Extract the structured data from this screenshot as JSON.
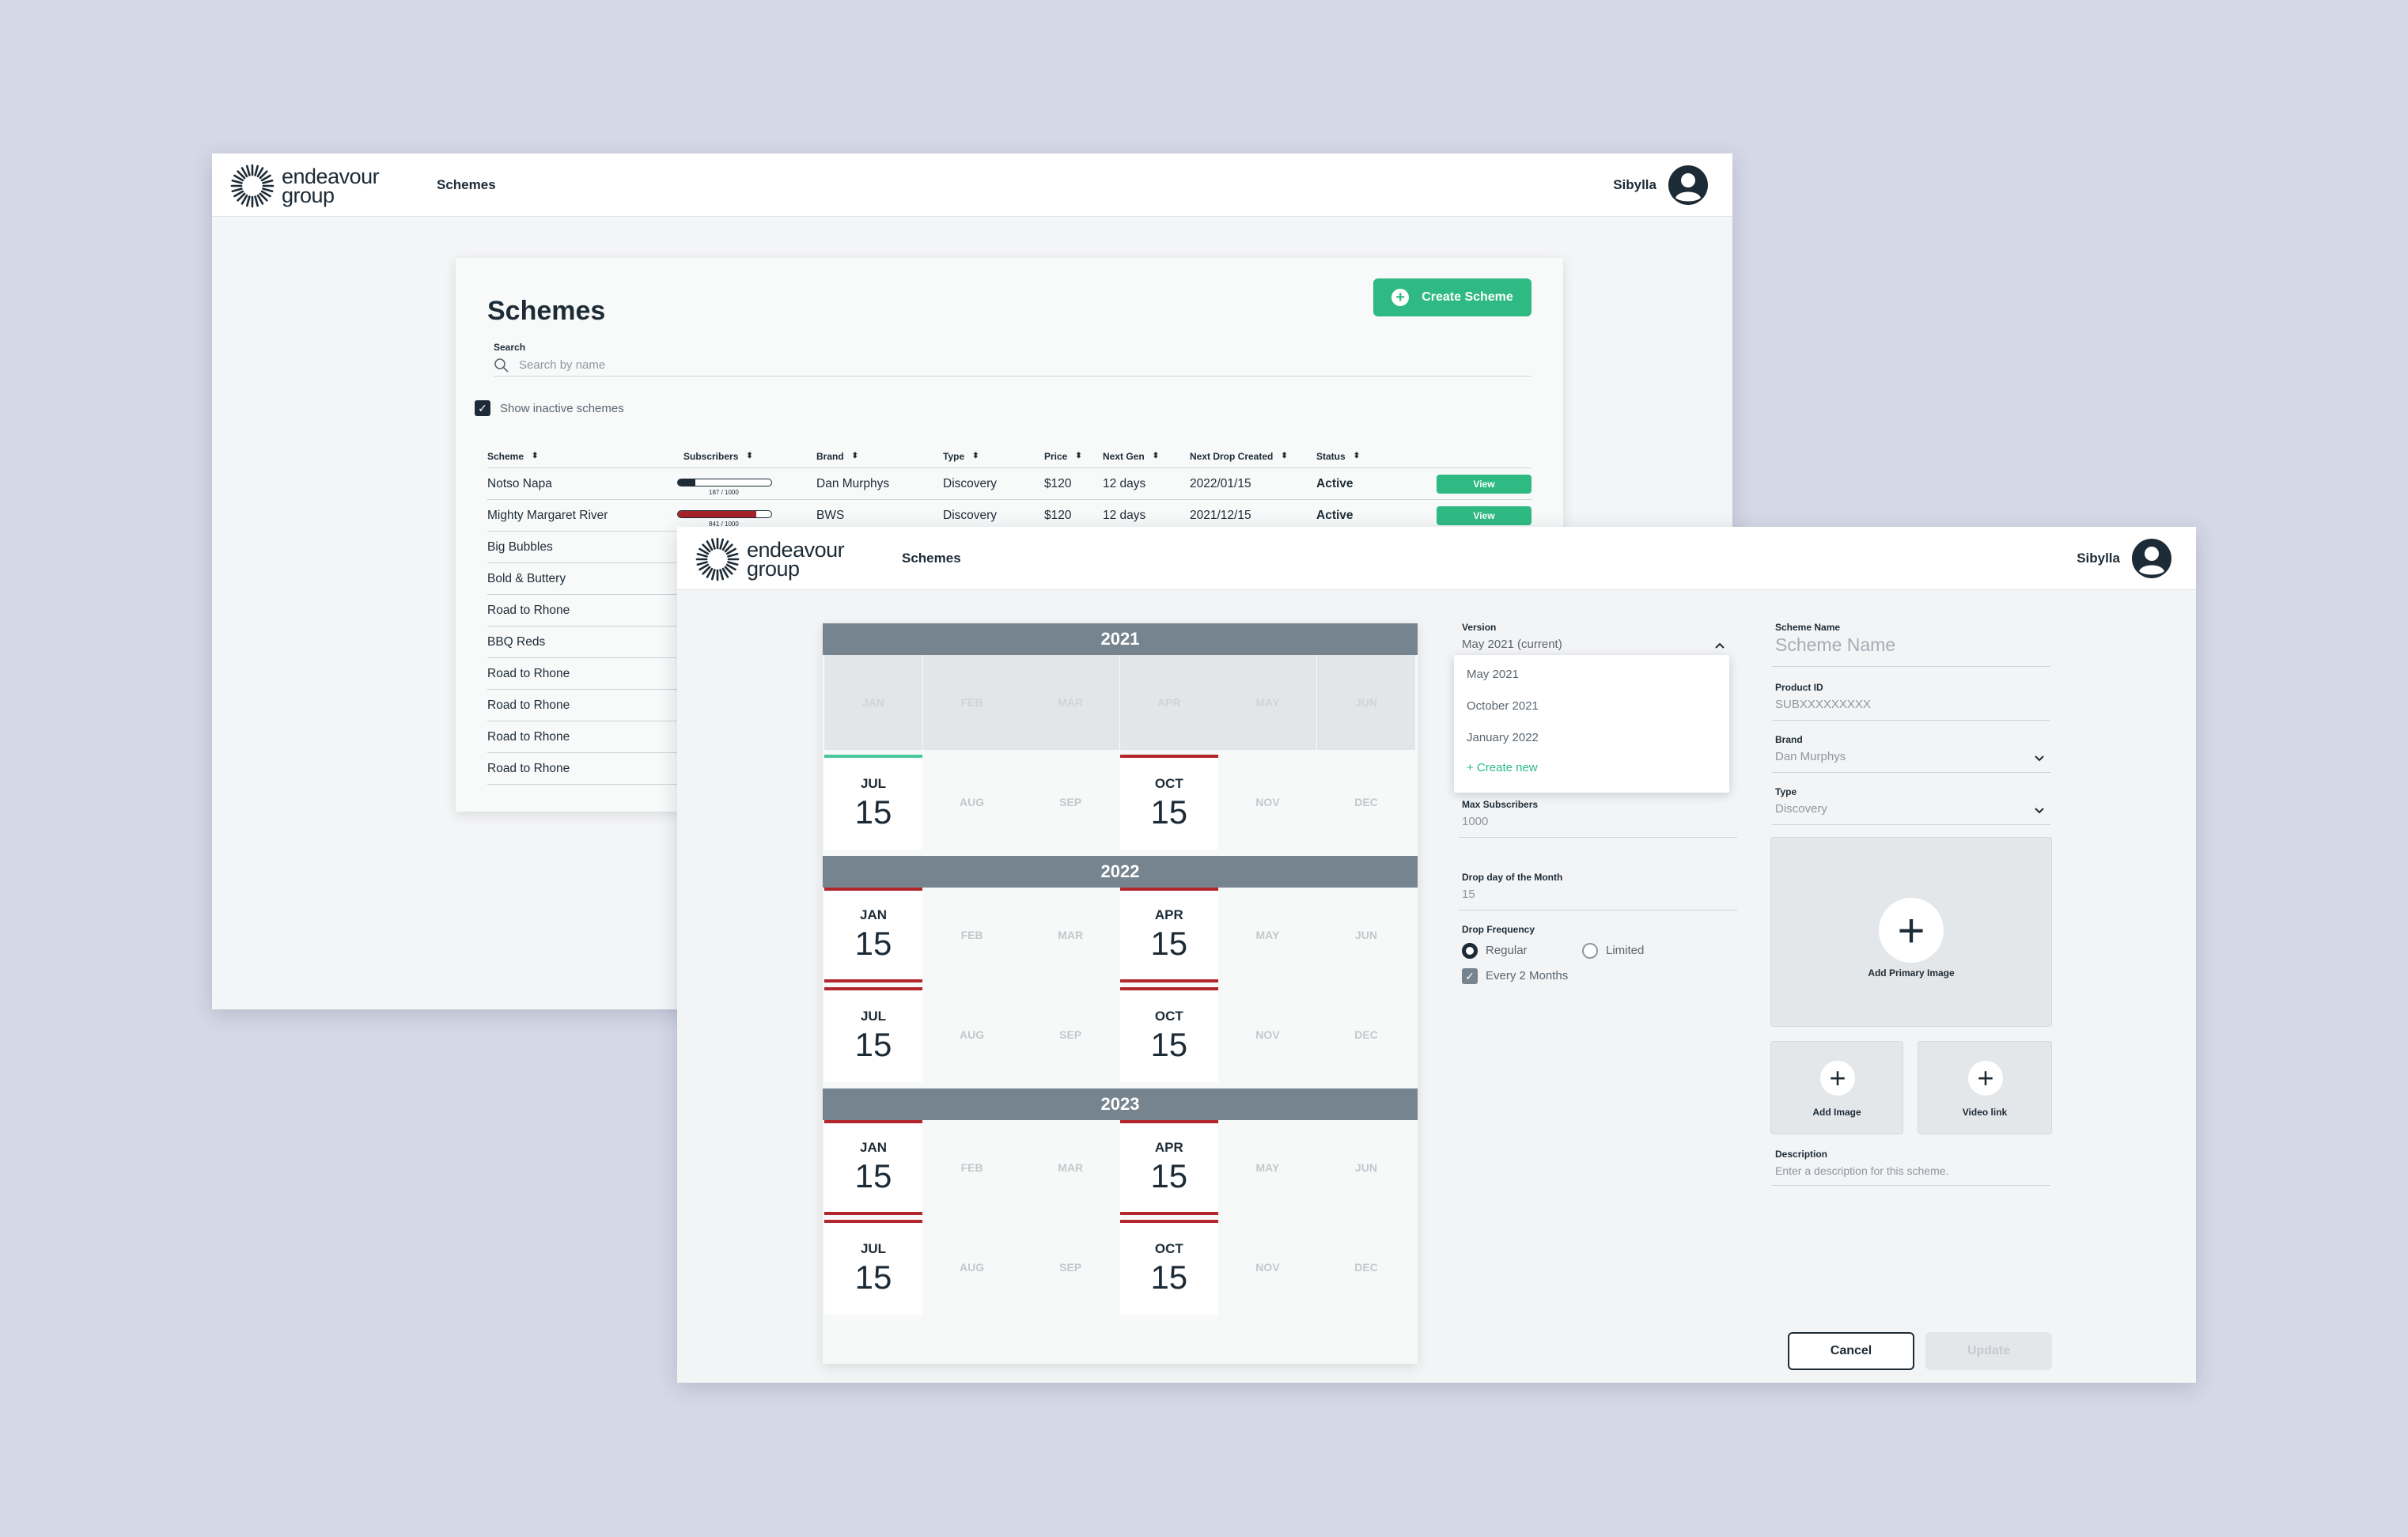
{
  "brand": {
    "logo_line1": "endeavour",
    "logo_line2": "group"
  },
  "nav": {
    "schemes": "Schemes"
  },
  "user": {
    "name": "Sibylla"
  },
  "list": {
    "title": "Schemes",
    "create_label": "Create Scheme",
    "search_label": "Search",
    "search_placeholder": "Search by name",
    "show_inactive": "Show inactive schemes",
    "show_inactive_checked": true,
    "columns": [
      "Scheme",
      "Subscribers",
      "Brand",
      "Type",
      "Price",
      "Next Gen",
      "Next Drop Created",
      "Status"
    ],
    "rows": [
      {
        "scheme": "Notso Napa",
        "subscribers_text": "187 / 1000",
        "subscribers_fraction": 0.187,
        "bar_color": "#1d2b36",
        "brand": "Dan Murphys",
        "type": "Discovery",
        "price": "$120",
        "next_gen": "12 days",
        "next_drop": "2022/01/15",
        "status": "Active",
        "action": "View"
      },
      {
        "scheme": "Mighty Margaret River",
        "subscribers_text": "841 / 1000",
        "subscribers_fraction": 0.841,
        "bar_color": "#a52228",
        "brand": "BWS",
        "type": "Discovery",
        "price": "$120",
        "next_gen": "12 days",
        "next_drop": "2021/12/15",
        "status": "Active",
        "action": "View"
      },
      {
        "scheme": "Big Bubbles"
      },
      {
        "scheme": "Bold & Buttery"
      },
      {
        "scheme": "Road to Rhone"
      },
      {
        "scheme": "BBQ Reds"
      },
      {
        "scheme": "Road to Rhone"
      },
      {
        "scheme": "Road to Rhone"
      },
      {
        "scheme": "Road to Rhone"
      },
      {
        "scheme": "Road to Rhone"
      }
    ]
  },
  "calendar": {
    "years": [
      {
        "year": "2021",
        "months": [
          {
            "m": "JAN",
            "state": "past"
          },
          {
            "m": "FEB",
            "state": "past"
          },
          {
            "m": "MAR",
            "state": "past"
          },
          {
            "m": "APR",
            "state": "past"
          },
          {
            "m": "MAY",
            "state": "past"
          },
          {
            "m": "JUN",
            "state": "past"
          },
          {
            "m": "JUL",
            "day": "15",
            "state": "drop",
            "mark": "green"
          },
          {
            "m": "AUG",
            "state": "off"
          },
          {
            "m": "SEP",
            "state": "off"
          },
          {
            "m": "OCT",
            "day": "15",
            "state": "drop",
            "mark": "red"
          },
          {
            "m": "NOV",
            "state": "off"
          },
          {
            "m": "DEC",
            "state": "off"
          }
        ]
      },
      {
        "year": "2022",
        "months": [
          {
            "m": "JAN",
            "day": "15",
            "state": "drop",
            "mark": "red"
          },
          {
            "m": "FEB",
            "state": "off"
          },
          {
            "m": "MAR",
            "state": "off"
          },
          {
            "m": "APR",
            "day": "15",
            "state": "drop",
            "mark": "red"
          },
          {
            "m": "MAY",
            "state": "off"
          },
          {
            "m": "JUN",
            "state": "off"
          },
          {
            "m": "JUL",
            "day": "15",
            "state": "drop",
            "mark": "red"
          },
          {
            "m": "AUG",
            "state": "off"
          },
          {
            "m": "SEP",
            "state": "off"
          },
          {
            "m": "OCT",
            "day": "15",
            "state": "drop",
            "mark": "red"
          },
          {
            "m": "NOV",
            "state": "off"
          },
          {
            "m": "DEC",
            "state": "off"
          }
        ]
      },
      {
        "year": "2023",
        "months": [
          {
            "m": "JAN",
            "day": "15",
            "state": "drop",
            "mark": "red"
          },
          {
            "m": "FEB",
            "state": "off"
          },
          {
            "m": "MAR",
            "state": "off"
          },
          {
            "m": "APR",
            "day": "15",
            "state": "drop",
            "mark": "red"
          },
          {
            "m": "MAY",
            "state": "off"
          },
          {
            "m": "JUN",
            "state": "off"
          },
          {
            "m": "JUL",
            "day": "15",
            "state": "drop",
            "mark": "red"
          },
          {
            "m": "AUG",
            "state": "off"
          },
          {
            "m": "SEP",
            "state": "off"
          },
          {
            "m": "OCT",
            "day": "15",
            "state": "drop",
            "mark": "red"
          },
          {
            "m": "NOV",
            "state": "off"
          },
          {
            "m": "DEC",
            "state": "off"
          }
        ]
      }
    ]
  },
  "form": {
    "version_label": "Version",
    "version_value": "May 2021 (current)",
    "version_options": [
      "May 2021",
      "October 2021",
      "January 2022"
    ],
    "version_create": "+ Create new",
    "max_subs_label": "Max Subscribers",
    "max_subs_value": "1000",
    "drop_day_label": "Drop day of the Month",
    "drop_day_value": "15",
    "drop_freq_label": "Drop Frequency",
    "freq_regular": "Regular",
    "freq_limited": "Limited",
    "freq_selected": "Regular",
    "every_label": "Every 2 Months",
    "every_checked": true,
    "scheme_name_label": "Scheme Name",
    "scheme_name_placeholder": "Scheme Name",
    "product_id_label": "Product ID",
    "product_id_value": "SUBXXXXXXXXX",
    "brand_label": "Brand",
    "brand_value": "Dan Murphys",
    "type_label": "Type",
    "type_value": "Discovery",
    "add_primary_image": "Add Primary Image",
    "add_image": "Add Image",
    "video_link": "Video link",
    "description_label": "Description",
    "description_placeholder": "Enter a description for this scheme.",
    "cancel": "Cancel",
    "update": "Update"
  },
  "colors": {
    "background": "#d5d8e6",
    "accent_green": "#2fba83",
    "mark_red": "#b3262b",
    "year_bar": "#76848f",
    "text_dark": "#1d2b36"
  }
}
